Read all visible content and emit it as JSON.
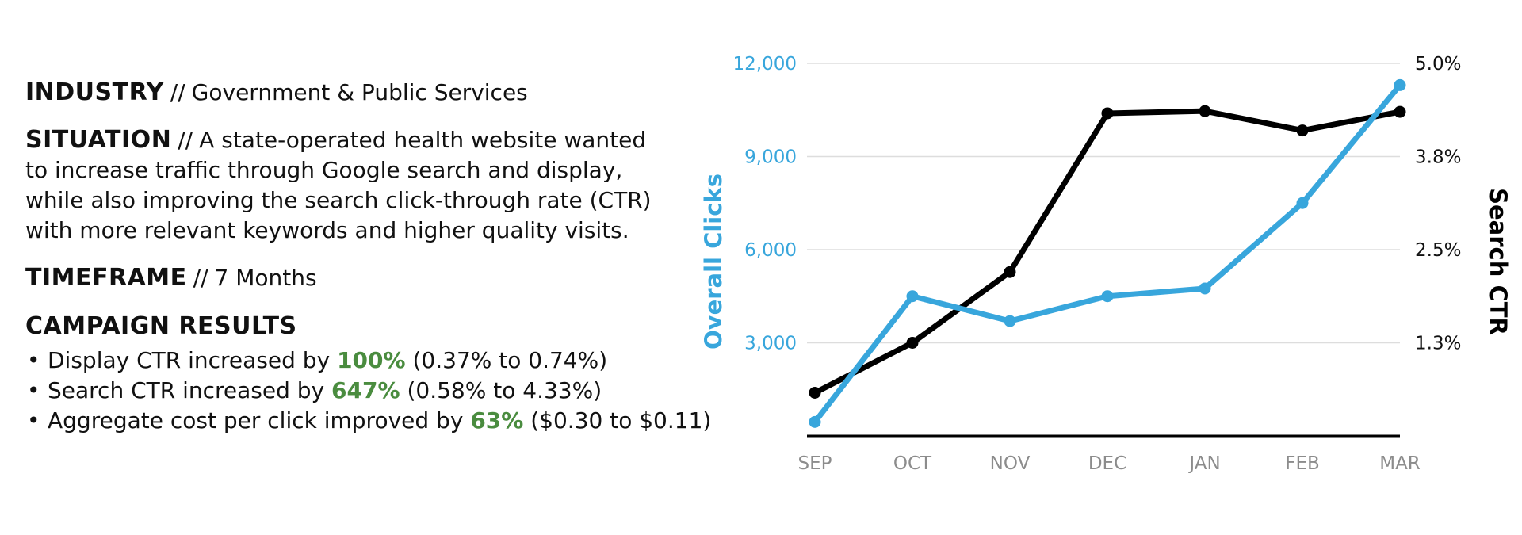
{
  "colors": {
    "clicks": "#38a6dc",
    "ctr": "#000000",
    "highlight": "#4a8c3f",
    "grid": "#dddddd",
    "xtick": "#8c8c8c"
  },
  "summary": {
    "industry": {
      "label": "INDUSTRY",
      "sep": "//",
      "text": "Government & Public Services"
    },
    "situation": {
      "label": "SITUATION",
      "sep": "//",
      "text": "A state-operated health website wanted to increase traffic through Google search and display, while also improving the search click-through rate (CTR) with more relevant keywords and higher quality visits."
    },
    "timeframe": {
      "label": "TIMEFRAME",
      "sep": "//",
      "text": "7 Months"
    },
    "results_heading": "CAMPAIGN RESULTS",
    "results": [
      {
        "before": "Display CTR increased by",
        "highlight": "100%",
        "after": "(0.37% to 0.74%)"
      },
      {
        "before": "Search CTR increased by",
        "highlight": "647%",
        "after": "(0.58% to 4.33%)"
      },
      {
        "before": "Aggregate cost per click improved by",
        "highlight": "63%",
        "after": "($0.30 to $0.11)"
      }
    ]
  },
  "chart_data": {
    "type": "line",
    "categories": [
      "SEP",
      "OCT",
      "NOV",
      "DEC",
      "JAN",
      "FEB",
      "MAR"
    ],
    "y_left": {
      "label": "Overall Clicks",
      "ticks": [
        "3,000",
        "6,000",
        "9,000",
        "12,000"
      ],
      "tick_values": [
        3000,
        6000,
        9000,
        12000
      ],
      "range": [
        0,
        12000
      ]
    },
    "y_right": {
      "label": "Search CTR",
      "ticks": [
        "1.3%",
        "2.5%",
        "3.8%",
        "5.0%"
      ],
      "tick_values": [
        1.25,
        2.5,
        3.75,
        5.0
      ],
      "range": [
        0,
        5.0
      ]
    },
    "series": [
      {
        "name": "Overall Clicks",
        "axis": "left",
        "values": [
          450,
          4500,
          3700,
          4500,
          4750,
          7500,
          11300
        ]
      },
      {
        "name": "Search CTR",
        "axis": "right",
        "values": [
          0.58,
          1.25,
          2.2,
          4.33,
          4.36,
          4.1,
          4.35
        ]
      }
    ],
    "grid": true
  }
}
